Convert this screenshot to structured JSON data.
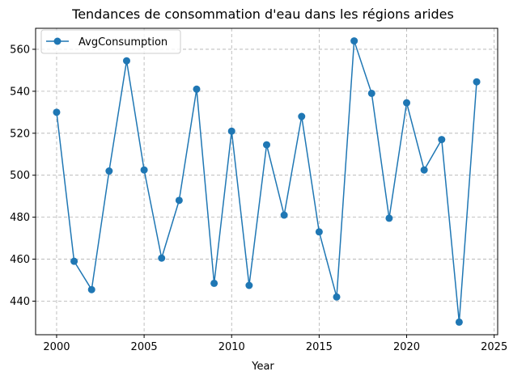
{
  "chart_data": {
    "type": "line",
    "title": "Tendances de consommation d'eau dans les régions arides",
    "xlabel": "Year",
    "ylabel": "",
    "xlim": [
      1998.8,
      2025.2
    ],
    "ylim": [
      424,
      570
    ],
    "xticks": [
      2000,
      2005,
      2010,
      2015,
      2020,
      2025
    ],
    "yticks": [
      440,
      460,
      480,
      500,
      520,
      540,
      560
    ],
    "grid": true,
    "legend_position": "top-left",
    "series": [
      {
        "name": "AvgConsumption",
        "color": "#1f77b4",
        "marker": "circle",
        "x": [
          2000,
          2001,
          2002,
          2003,
          2004,
          2005,
          2006,
          2007,
          2008,
          2009,
          2010,
          2011,
          2012,
          2013,
          2014,
          2015,
          2016,
          2017,
          2018,
          2019,
          2020,
          2021,
          2022,
          2023,
          2024
        ],
        "values": [
          530,
          459,
          445.5,
          502,
          554.5,
          502.5,
          460.5,
          488,
          541,
          448.5,
          521,
          447.5,
          514.5,
          481,
          528,
          473,
          442,
          564,
          539,
          479.5,
          534.5,
          502.5,
          517,
          430,
          544.5
        ]
      }
    ]
  }
}
